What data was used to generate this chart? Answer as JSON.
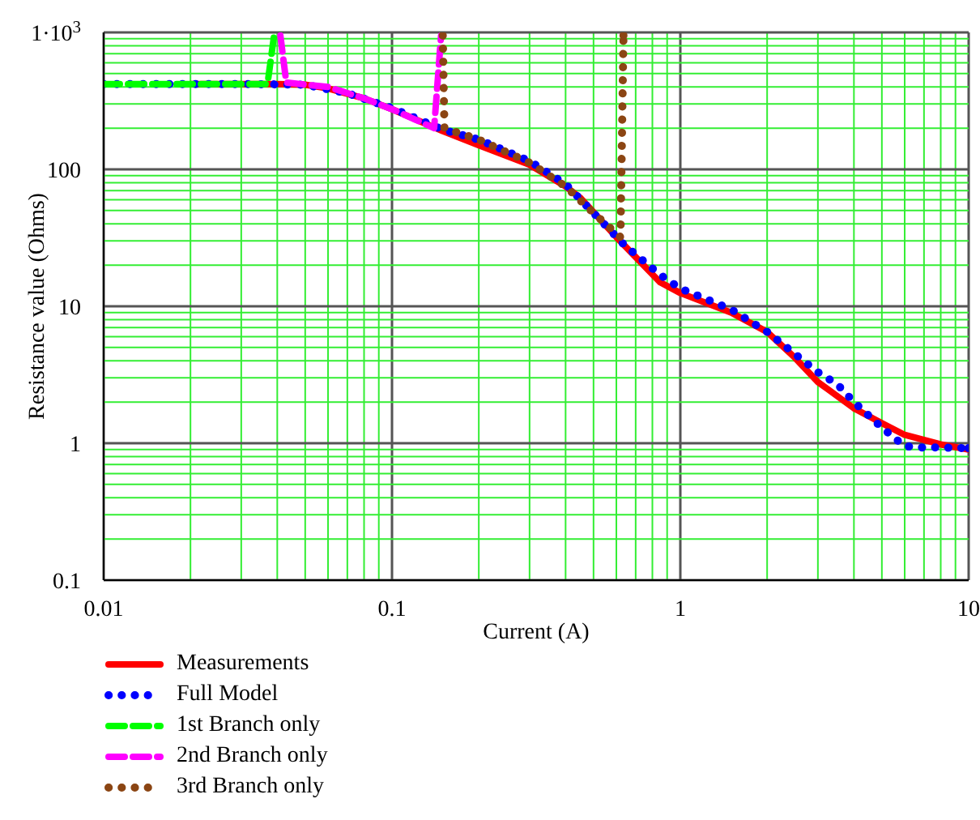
{
  "chart_data": {
    "type": "line",
    "xlabel": "Current (A)",
    "ylabel": "Resistance value (Ohms)",
    "log": "xy",
    "grid": true,
    "legend": "bottom",
    "marker": "none",
    "xlim": [
      0.01,
      10
    ],
    "xticks": [
      0.01,
      {
        "value": 0.02,
        "label": null
      },
      {
        "value": 0.03,
        "label": null
      },
      {
        "value": 0.04,
        "label": null
      },
      {
        "value": 0.05,
        "label": null
      },
      {
        "value": 0.06,
        "label": null
      },
      {
        "value": 0.07,
        "label": null
      },
      {
        "value": 0.08,
        "label": null
      },
      {
        "value": 0.09,
        "label": null
      },
      0.1,
      {
        "value": 0.2,
        "label": null
      },
      {
        "value": 0.3,
        "label": null
      },
      {
        "value": 0.4,
        "label": null
      },
      {
        "value": 0.5,
        "label": null
      },
      {
        "value": 0.6,
        "label": null
      },
      {
        "value": 0.7,
        "label": null
      },
      {
        "value": 0.8,
        "label": null
      },
      {
        "value": 0.9,
        "label": null
      },
      1,
      {
        "value": 2,
        "label": null
      },
      {
        "value": 3,
        "label": null
      },
      {
        "value": 4,
        "label": null
      },
      {
        "value": 5,
        "label": null
      },
      {
        "value": 6,
        "label": null
      },
      {
        "value": 7,
        "label": null
      },
      {
        "value": 8,
        "label": null
      },
      {
        "value": 9,
        "label": null
      },
      10
    ],
    "ylim": [
      0.1,
      1000
    ],
    "yticks": [
      0.1,
      {
        "value": 0.2,
        "label": null
      },
      {
        "value": 0.3,
        "label": null
      },
      {
        "value": 0.4,
        "label": null
      },
      {
        "value": 0.5,
        "label": null
      },
      {
        "value": 0.6,
        "label": null
      },
      {
        "value": 0.7,
        "label": null
      },
      {
        "value": 0.8,
        "label": null
      },
      {
        "value": 0.9,
        "label": null
      },
      1,
      {
        "value": 2,
        "label": null
      },
      {
        "value": 3,
        "label": null
      },
      {
        "value": 4,
        "label": null
      },
      {
        "value": 5,
        "label": null
      },
      {
        "value": 6,
        "label": null
      },
      {
        "value": 7,
        "label": null
      },
      {
        "value": 8,
        "label": null
      },
      {
        "value": 9,
        "label": null
      },
      10,
      {
        "value": 20,
        "label": null
      },
      {
        "value": 30,
        "label": null
      },
      {
        "value": 40,
        "label": null
      },
      {
        "value": 50,
        "label": null
      },
      {
        "value": 60,
        "label": null
      },
      {
        "value": 70,
        "label": null
      },
      {
        "value": 80,
        "label": null
      },
      {
        "value": 90,
        "label": null
      },
      100,
      {
        "value": 200,
        "label": null
      },
      {
        "value": 300,
        "label": null
      },
      {
        "value": 400,
        "label": null
      },
      {
        "value": 500,
        "label": null
      },
      {
        "value": 600,
        "label": null
      },
      {
        "value": 700,
        "label": null
      },
      {
        "value": 800,
        "label": null
      },
      {
        "value": 900,
        "label": null
      },
      {
        "value": 1000,
        "label": "1·10$^{3}$"
      }
    ],
    "series": [
      {
        "name": "Measurements",
        "color": "#ff0000",
        "line_style": "solid",
        "x": [
          0.02,
          0.04,
          0.05,
          0.06,
          0.08,
          0.1,
          0.15,
          0.2,
          0.3,
          0.4,
          0.45,
          0.6,
          0.85,
          1,
          1.5,
          2,
          2.5,
          3,
          4,
          5,
          6,
          8,
          10
        ],
        "values": [
          420,
          420,
          415,
          390,
          330,
          275,
          190,
          150,
          108,
          75,
          62,
          32,
          15,
          12.5,
          9,
          6.5,
          4.2,
          2.8,
          1.8,
          1.4,
          1.15,
          0.98,
          0.9
        ]
      },
      {
        "name": "Full Model",
        "color": "#0000ff",
        "line_style": "dotted",
        "x": [
          0.01,
          0.03,
          0.05,
          0.07,
          0.1,
          0.15,
          0.2,
          0.3,
          0.4,
          0.5,
          0.64,
          0.85,
          1,
          1.5,
          2,
          3,
          3.5,
          4,
          5,
          6,
          7,
          8,
          10
        ],
        "values": [
          420,
          420,
          415,
          360,
          280,
          195,
          165,
          115,
          78,
          48,
          28,
          17,
          13.5,
          9.5,
          6.5,
          3.3,
          2.7,
          2,
          1.3,
          0.95,
          0.93,
          0.93,
          0.92
        ]
      },
      {
        "name": "1st Branch only",
        "color": "#00ff00",
        "line_style": "dashed",
        "x": [
          0.01,
          0.02,
          0.037,
          0.039
        ],
        "values": [
          420,
          420,
          420,
          950
        ]
      },
      {
        "name": "2nd Branch only",
        "color": "#ff00ff",
        "line_style": "dashed",
        "x": [
          0.041,
          0.043,
          0.06,
          0.08,
          0.1,
          0.14,
          0.148
        ],
        "values": [
          950,
          430,
          400,
          330,
          275,
          200,
          950
        ]
      },
      {
        "name": "3rd Branch  only",
        "color": "#8b4513",
        "line_style": "dotted",
        "x": [
          0.15,
          0.152,
          0.2,
          0.3,
          0.4,
          0.5,
          0.62,
          0.635
        ],
        "values": [
          950,
          200,
          165,
          112,
          75,
          48,
          32,
          950
        ]
      }
    ]
  }
}
